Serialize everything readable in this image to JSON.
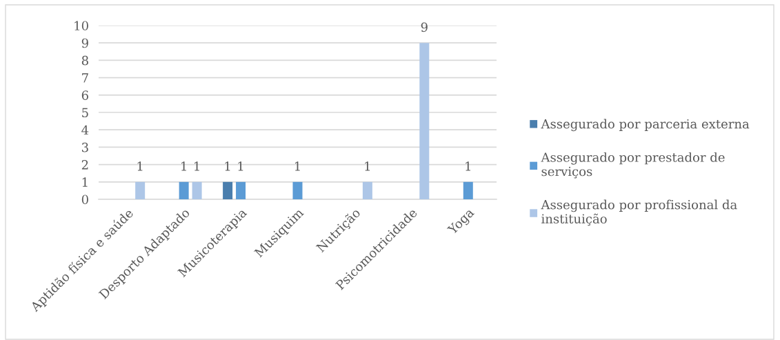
{
  "chart_data": {
    "type": "bar",
    "categories": [
      "Aptidão física e saúde",
      "Desporto Adaptado",
      "Musicoterapia",
      "Musiquim",
      "Nutrição",
      "Psicomotricidade",
      "Yoga"
    ],
    "series": [
      {
        "name": "Assegurado por parceria externa",
        "color": "#4a7ead",
        "values": [
          null,
          null,
          1,
          null,
          null,
          null,
          null
        ]
      },
      {
        "name": "Assegurado por prestador de serviços",
        "color": "#5b9bd5",
        "values": [
          null,
          1,
          1,
          1,
          null,
          null,
          1
        ]
      },
      {
        "name": "Assegurado por profissional da instituição",
        "color": "#adc6e7",
        "values": [
          1,
          1,
          null,
          null,
          1,
          9,
          null
        ]
      }
    ],
    "ylim": [
      0,
      10
    ],
    "yticks": [
      0,
      1,
      2,
      3,
      4,
      5,
      6,
      7,
      8,
      9,
      10
    ],
    "grid": "y",
    "legend": "right",
    "data_labels": true
  }
}
